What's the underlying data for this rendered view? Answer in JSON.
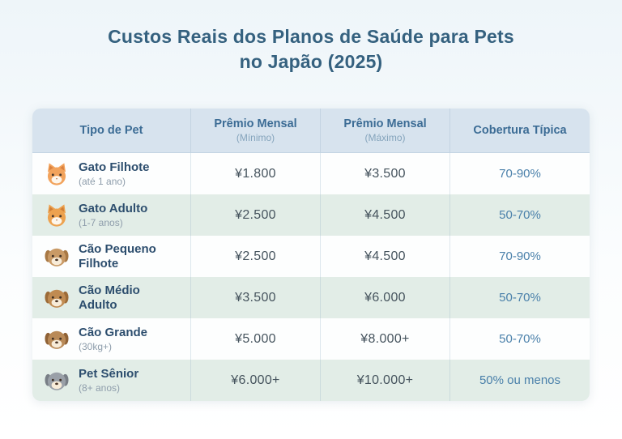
{
  "title_line1": "Custos Reais dos Planos de Saúde para Pets",
  "title_line2": "no Japão (2025)",
  "table": {
    "headers": [
      {
        "label": "Tipo de Pet",
        "sub": ""
      },
      {
        "label": "Prêmio Mensal",
        "sub": "(Mínimo)"
      },
      {
        "label": "Prêmio Mensal",
        "sub": "(Máximo)"
      },
      {
        "label": "Cobertura Típica",
        "sub": ""
      }
    ],
    "rows": [
      {
        "pet": "Gato Filhote",
        "pet_sub": "(até 1 ano)",
        "min": "¥1.800",
        "max": "¥3.500",
        "coverage": "70-90%",
        "icon": {
          "kind": "cat",
          "name": "kitten-icon",
          "body": "#f2a35c",
          "accent": "#d9813f"
        }
      },
      {
        "pet": "Gato Adulto",
        "pet_sub": "(1-7 anos)",
        "min": "¥2.500",
        "max": "¥4.500",
        "coverage": "50-70%",
        "icon": {
          "kind": "cat",
          "name": "adult-cat-icon",
          "body": "#eda24f",
          "accent": "#d07e36"
        }
      },
      {
        "pet": "Cão Pequeno Filhote",
        "pet_sub": "",
        "min": "¥2.500",
        "max": "¥4.500",
        "coverage": "70-90%",
        "icon": {
          "kind": "dog",
          "name": "small-dog-icon",
          "body": "#c99a66",
          "accent": "#a87844"
        }
      },
      {
        "pet": "Cão Médio Adulto",
        "pet_sub": "",
        "min": "¥3.500",
        "max": "¥6.000",
        "coverage": "50-70%",
        "icon": {
          "kind": "dog",
          "name": "medium-dog-icon",
          "body": "#c08b52",
          "accent": "#9c6b38"
        }
      },
      {
        "pet": "Cão Grande",
        "pet_sub": "(30kg+)",
        "min": "¥5.000",
        "max": "¥8.000+",
        "coverage": "50-70%",
        "icon": {
          "kind": "dog",
          "name": "large-dog-icon",
          "body": "#b98a58",
          "accent": "#8f6236"
        }
      },
      {
        "pet": "Pet Sênior",
        "pet_sub": "(8+ anos)",
        "min": "¥6.000+",
        "max": "¥10.000+",
        "coverage": "50% ou menos",
        "icon": {
          "kind": "dog",
          "name": "senior-dog-icon",
          "body": "#9aa0a8",
          "accent": "#787e86"
        }
      }
    ]
  },
  "chart_data": {
    "type": "table",
    "title": "Custos Reais dos Planos de Saúde para Pets no Japão (2025)",
    "columns": [
      "Tipo de Pet",
      "Prêmio Mensal (Mínimo)",
      "Prêmio Mensal (Máximo)",
      "Cobertura Típica"
    ],
    "rows": [
      [
        "Gato Filhote (até 1 ano)",
        "¥1.800",
        "¥3.500",
        "70-90%"
      ],
      [
        "Gato Adulto (1-7 anos)",
        "¥2.500",
        "¥4.500",
        "50-70%"
      ],
      [
        "Cão Pequeno Filhote",
        "¥2.500",
        "¥4.500",
        "70-90%"
      ],
      [
        "Cão Médio Adulto",
        "¥3.500",
        "¥6.000",
        "50-70%"
      ],
      [
        "Cão Grande (30kg+)",
        "¥5.000",
        "¥8.000+",
        "50-70%"
      ],
      [
        "Pet Sênior (8+ anos)",
        "¥6.000+",
        "¥10.000+",
        "50% ou menos"
      ]
    ]
  }
}
